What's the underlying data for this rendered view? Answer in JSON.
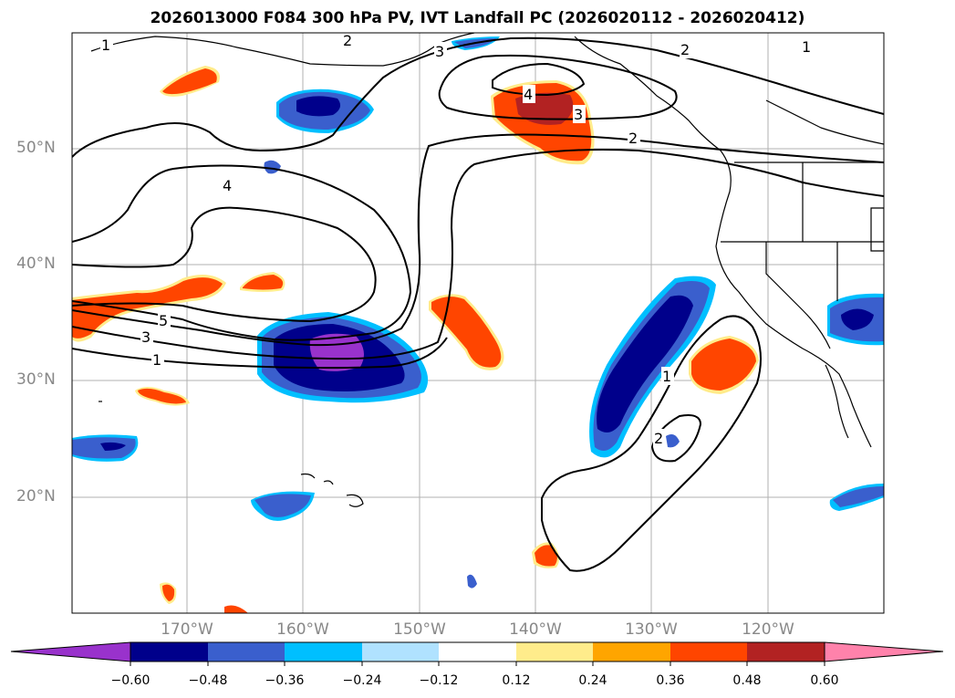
{
  "title": "2026013000 F084 300 hPa PV, IVT Landfall PC (2026020112 - 2026020412)",
  "map": {
    "lat_labels": [
      "50°N",
      "40°N",
      "30°N",
      "20°N"
    ],
    "lon_labels": [
      "170°W",
      "160°W",
      "150°W",
      "140°W",
      "130°W",
      "120°W"
    ],
    "contour_labels": [
      "1",
      "2",
      "3",
      "2",
      "1",
      "4",
      "4",
      "3",
      "2",
      "5",
      "3",
      "1",
      "1",
      "2"
    ]
  },
  "colorbar": {
    "ticks": [
      "−0.60",
      "−0.48",
      "−0.36",
      "−0.24",
      "−0.12",
      "0.12",
      "0.24",
      "0.36",
      "0.48",
      "0.60"
    ],
    "colors": [
      "#9932cc",
      "#00008b",
      "#3a5fcd",
      "#00bfff",
      "#b0e2ff",
      "#ffffff",
      "#ffec8b",
      "#ffa500",
      "#ff4500",
      "#b22222",
      "#ff82ab"
    ]
  }
}
